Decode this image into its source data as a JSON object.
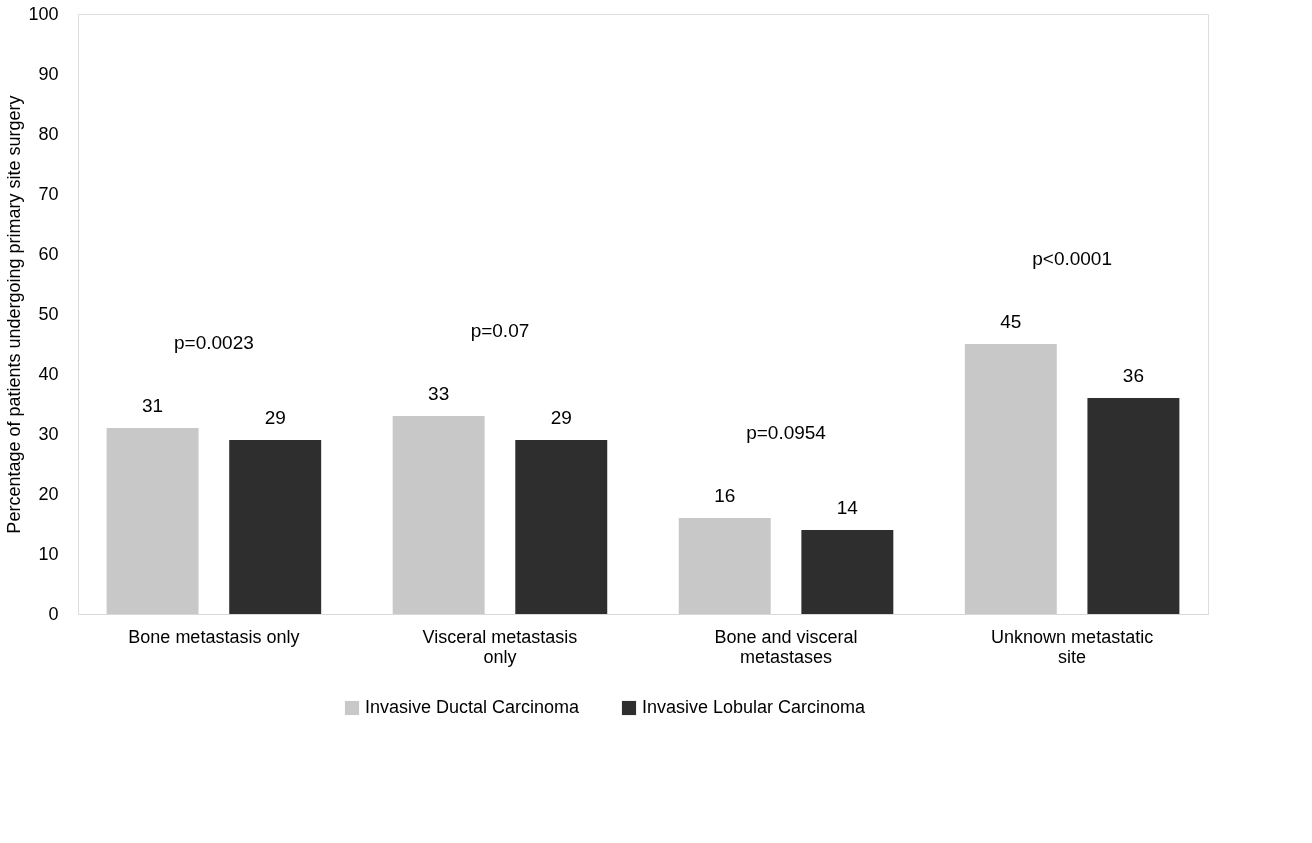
{
  "chart_data": {
    "type": "bar",
    "ylabel": "Percentage of patients undergoing primary site surgery",
    "categories": [
      "Bone metastasis only",
      "Visceral metastasis only",
      "Bone and visceral metastases",
      "Unknown metastatic site"
    ],
    "series": [
      {
        "name": "Invasive Ductal Carcinoma",
        "color": "#c8c8c8",
        "values": [
          31,
          33,
          16,
          45
        ]
      },
      {
        "name": "Invasive Lobular Carcinoma",
        "color": "#2e2e2e",
        "values": [
          29,
          29,
          14,
          36
        ]
      }
    ],
    "ylim": [
      0,
      100
    ],
    "yticks": [
      0,
      10,
      20,
      30,
      40,
      50,
      60,
      70,
      80,
      90,
      100
    ],
    "grid": false,
    "legend": "bottom",
    "data_labels": true,
    "annotations": [
      "p=0.0023",
      "p=0.07",
      "p=0.0954",
      "p<0.0001"
    ]
  }
}
